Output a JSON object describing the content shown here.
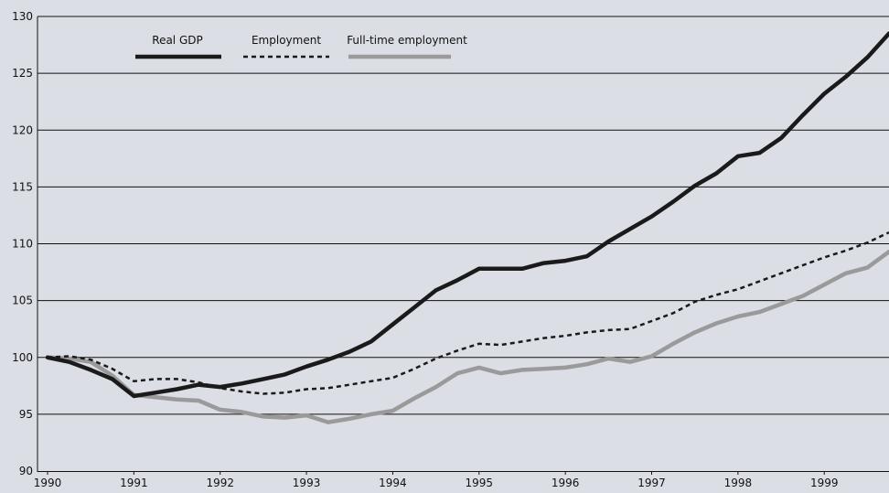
{
  "chart_data": {
    "type": "line",
    "title": "",
    "xlabel": "",
    "ylabel": "",
    "xlim": [
      1990,
      1999.75
    ],
    "ylim": [
      90,
      130
    ],
    "y_ticks": [
      90,
      95,
      100,
      105,
      110,
      115,
      120,
      125,
      130
    ],
    "x_ticks": [
      1990,
      1991,
      1992,
      1993,
      1994,
      1995,
      1996,
      1997,
      1998,
      1999
    ],
    "grid": "horizontal",
    "legend": "top-left",
    "x": [
      1990,
      1990.25,
      1990.5,
      1990.75,
      1991,
      1991.25,
      1991.5,
      1991.75,
      1992,
      1992.25,
      1992.5,
      1992.75,
      1993,
      1993.25,
      1993.5,
      1993.75,
      1994,
      1994.25,
      1994.5,
      1994.75,
      1995,
      1995.25,
      1995.5,
      1995.75,
      1996,
      1996.25,
      1996.5,
      1996.75,
      1997,
      1997.25,
      1997.5,
      1997.75,
      1998,
      1998.25,
      1998.5,
      1998.75,
      1999,
      1999.25,
      1999.5,
      1999.75
    ],
    "series": [
      {
        "name": "Real GDP",
        "color": "#1a1a1a",
        "style": "solid-thick",
        "values": [
          100.0,
          99.6,
          98.9,
          98.1,
          96.6,
          96.9,
          97.2,
          97.6,
          97.4,
          97.7,
          98.1,
          98.5,
          99.2,
          99.8,
          100.5,
          101.4,
          102.9,
          104.4,
          105.9,
          106.8,
          107.8,
          107.8,
          107.8,
          108.3,
          108.5,
          108.9,
          110.2,
          111.3,
          112.4,
          113.7,
          115.1,
          116.2,
          117.7,
          118.0,
          119.3,
          121.3,
          123.2,
          124.7,
          126.4,
          128.5
        ]
      },
      {
        "name": "Employment",
        "color": "#1a1a1a",
        "style": "dashed",
        "values": [
          100.0,
          100.1,
          99.8,
          99.0,
          97.9,
          98.1,
          98.1,
          97.8,
          97.3,
          97.0,
          96.8,
          96.9,
          97.2,
          97.3,
          97.6,
          97.9,
          98.2,
          99.0,
          99.9,
          100.6,
          101.2,
          101.1,
          101.4,
          101.7,
          101.9,
          102.2,
          102.4,
          102.5,
          103.2,
          103.9,
          104.9,
          105.5,
          106.0,
          106.7,
          107.4,
          108.1,
          108.8,
          109.4,
          110.1,
          111.0
        ]
      },
      {
        "name": "Full-time employment",
        "color": "#9a9a9a",
        "style": "solid-thick",
        "values": [
          100.0,
          99.9,
          99.6,
          98.4,
          96.7,
          96.5,
          96.3,
          96.2,
          95.4,
          95.2,
          94.8,
          94.7,
          94.9,
          94.3,
          94.6,
          95.0,
          95.3,
          96.4,
          97.4,
          98.6,
          99.1,
          98.6,
          98.9,
          99.0,
          99.1,
          99.4,
          99.9,
          99.6,
          100.1,
          101.2,
          102.2,
          103.0,
          103.6,
          104.0,
          104.7,
          105.4,
          106.4,
          107.4,
          107.9,
          109.3
        ]
      }
    ]
  }
}
